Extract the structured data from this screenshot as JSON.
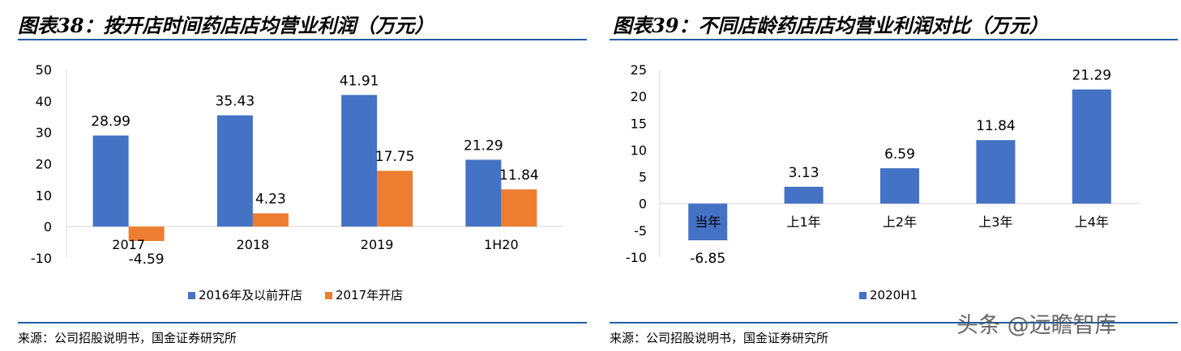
{
  "left": {
    "title": "图表38：按开店时间药店店均营业利润（万元）",
    "source": "来源：公司招股说明书，国金证券研究所"
  },
  "right": {
    "title": "图表39：不同店龄药店店均营业利润对比（万元）",
    "source": "来源：公司招股说明书，国金证券研究所"
  },
  "watermark": "头条 @远瞻智库",
  "colors": {
    "blue": "#4472c4",
    "orange": "#ed7d31",
    "rule": "#1f5fa8",
    "axis": "#d9d9d9"
  },
  "chart_data": [
    {
      "type": "bar",
      "categories": [
        "2017",
        "2018",
        "2019",
        "1H20"
      ],
      "series": [
        {
          "name": "2016年及以前开店",
          "values": [
            28.99,
            35.43,
            41.91,
            21.29
          ],
          "labels": [
            "28.99",
            "35.43",
            "41.91",
            "21.29"
          ],
          "color": "#4472c4"
        },
        {
          "name": "2017年开店",
          "values": [
            -4.59,
            4.23,
            17.75,
            11.84
          ],
          "labels": [
            "-4.59",
            "4.23",
            "17.75",
            "11.84"
          ],
          "color": "#ed7d31"
        }
      ],
      "yticks": [
        "50",
        "40",
        "30",
        "20",
        "10",
        "0",
        "-10"
      ],
      "ylim": [
        -10,
        50
      ],
      "legend": "bottom"
    },
    {
      "type": "bar",
      "categories": [
        "当年",
        "上1年",
        "上2年",
        "上3年",
        "上4年"
      ],
      "series": [
        {
          "name": "2020H1",
          "values": [
            -6.85,
            3.13,
            6.59,
            11.84,
            21.29
          ],
          "labels": [
            "-6.85",
            "3.13",
            "6.59",
            "11.84",
            "21.29"
          ],
          "color": "#4472c4"
        }
      ],
      "yticks": [
        "25",
        "20",
        "15",
        "10",
        "5",
        "0",
        "-5",
        "-10"
      ],
      "ylim": [
        -10,
        25
      ],
      "legend": "bottom"
    }
  ]
}
